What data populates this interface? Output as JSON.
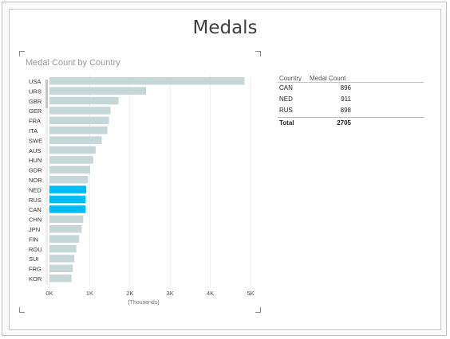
{
  "page": {
    "title": "Medals"
  },
  "chart_data": {
    "type": "bar",
    "orientation": "horizontal",
    "title": "Medal Count by Country",
    "xlabel": "(Thousands)",
    "ylabel": "",
    "xlim": [
      0,
      5000
    ],
    "xticks": [
      "0K",
      "1K",
      "2K",
      "3K",
      "4K",
      "5K"
    ],
    "categories": [
      "USA",
      "URS",
      "GBR",
      "GER",
      "FRA",
      "ITA",
      "SWE",
      "AUS",
      "HUN",
      "GDR",
      "NOR",
      "NED",
      "RUS",
      "CAN",
      "CHN",
      "JPN",
      "FIN",
      "ROU",
      "SUI",
      "FRG",
      "KOR"
    ],
    "values": [
      4850,
      2400,
      1720,
      1520,
      1480,
      1440,
      1300,
      1150,
      1090,
      1010,
      960,
      911,
      898,
      896,
      840,
      800,
      740,
      670,
      620,
      580,
      550
    ],
    "highlighted": [
      "NED",
      "RUS",
      "CAN"
    ],
    "colors": {
      "bar": "#c7d7d8",
      "highlight": "#00bcf2"
    },
    "grid": true
  },
  "table": {
    "headers": {
      "country": "Country",
      "count": "Medal Count"
    },
    "rows": [
      {
        "country": "CAN",
        "count": "896"
      },
      {
        "country": "NED",
        "count": "911"
      },
      {
        "country": "RUS",
        "count": "898"
      }
    ],
    "total": {
      "label": "Total",
      "value": "2705"
    }
  }
}
